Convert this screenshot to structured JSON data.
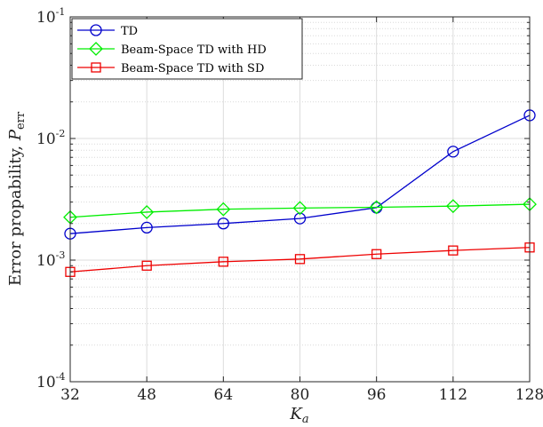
{
  "chart_data": {
    "type": "line",
    "title": "",
    "xlabel": "K",
    "xlabel_sub": "a",
    "ylabel": "Error propability, ",
    "ylabel_var": "P",
    "ylabel_sub": "err",
    "x": [
      32,
      48,
      64,
      80,
      96,
      112,
      128
    ],
    "xlim": [
      32,
      128
    ],
    "x_ticks": [
      "32",
      "48",
      "64",
      "80",
      "96",
      "112",
      "128"
    ],
    "y_scale": "log",
    "ylim": [
      0.0001,
      0.1
    ],
    "y_ticks": [
      {
        "base": "10",
        "exp": "-4",
        "value": 0.0001
      },
      {
        "base": "10",
        "exp": "-3",
        "value": 0.001
      },
      {
        "base": "10",
        "exp": "-2",
        "value": 0.01
      },
      {
        "base": "10",
        "exp": "-1",
        "value": 0.1
      }
    ],
    "grid": true,
    "legend_position": "top-left",
    "series": [
      {
        "name": "TD",
        "color": "#0000cc",
        "marker": "circle",
        "values": [
          0.00165,
          0.00185,
          0.002,
          0.0022,
          0.0027,
          0.0078,
          0.0155
        ]
      },
      {
        "name": "Beam-Space TD with HD",
        "color": "#00ee00",
        "marker": "diamond",
        "values": [
          0.00225,
          0.00248,
          0.00262,
          0.00268,
          0.00272,
          0.00278,
          0.00288
        ]
      },
      {
        "name": "Beam-Space TD with SD",
        "color": "#ee0000",
        "marker": "square",
        "values": [
          0.0008,
          0.0009,
          0.00097,
          0.00102,
          0.00112,
          0.0012,
          0.00127
        ]
      }
    ]
  }
}
